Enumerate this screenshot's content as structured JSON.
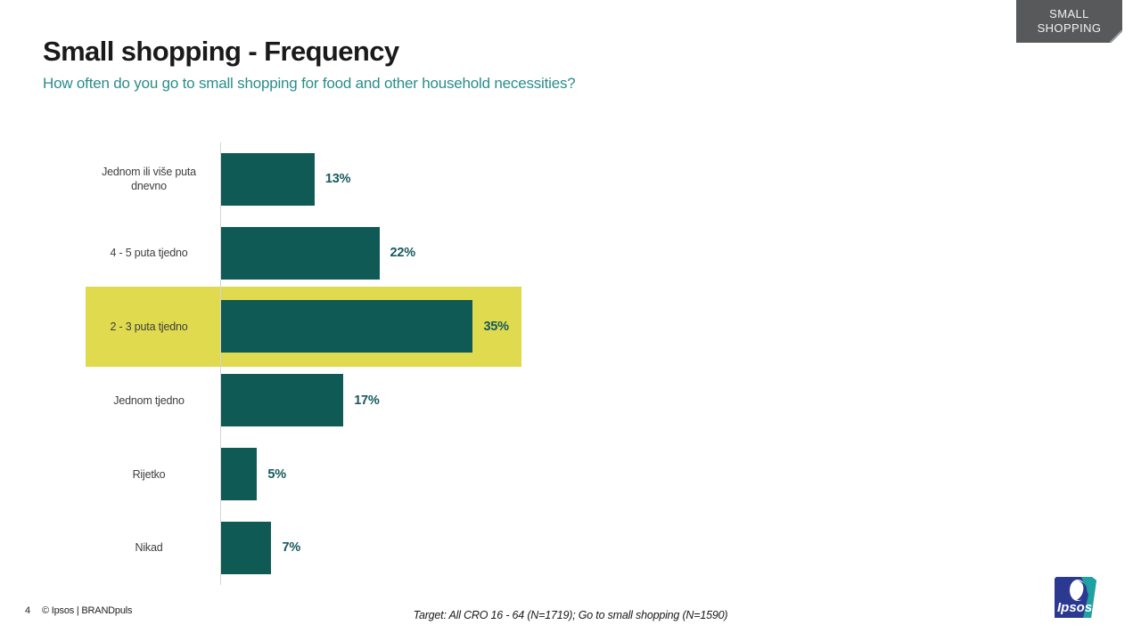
{
  "badge": {
    "line1": "SMALL",
    "line2": "SHOPPING",
    "bg_color": "#58595b"
  },
  "header": {
    "title": "Small shopping - Frequency",
    "subtitle": "How often do you go to small shopping for food and other household necessities?",
    "subtitle_color": "#2b8c8c"
  },
  "chart_data": {
    "type": "bar",
    "orientation": "horizontal",
    "title": "Small shopping - Frequency",
    "categories": [
      "Jednom ili više puta dnevno",
      "4 - 5 puta tjedno",
      "2 - 3 puta tjedno",
      "Jednom tjedno",
      "Rijetko",
      "Nikad"
    ],
    "values": [
      13,
      22,
      35,
      17,
      5,
      7
    ],
    "value_labels": [
      "13%",
      "22%",
      "35%",
      "17%",
      "5%",
      "7%"
    ],
    "highlighted_index": 2,
    "xlim": [
      0,
      100
    ],
    "grid": false,
    "legend": false,
    "bar_color": "#0f5a54",
    "value_label_color": "#17595c",
    "highlight_color": "#dfda4e"
  },
  "footer": {
    "page_number": "4",
    "copyright": "© Ipsos | BRANDpuls",
    "target_note": "Target: All CRO 16 - 64 (N=1719);   Go to small shopping (N=1590)",
    "logo_text": "Ipsos",
    "logo_blue": "#2b3990",
    "logo_teal": "#1fa0a3"
  }
}
